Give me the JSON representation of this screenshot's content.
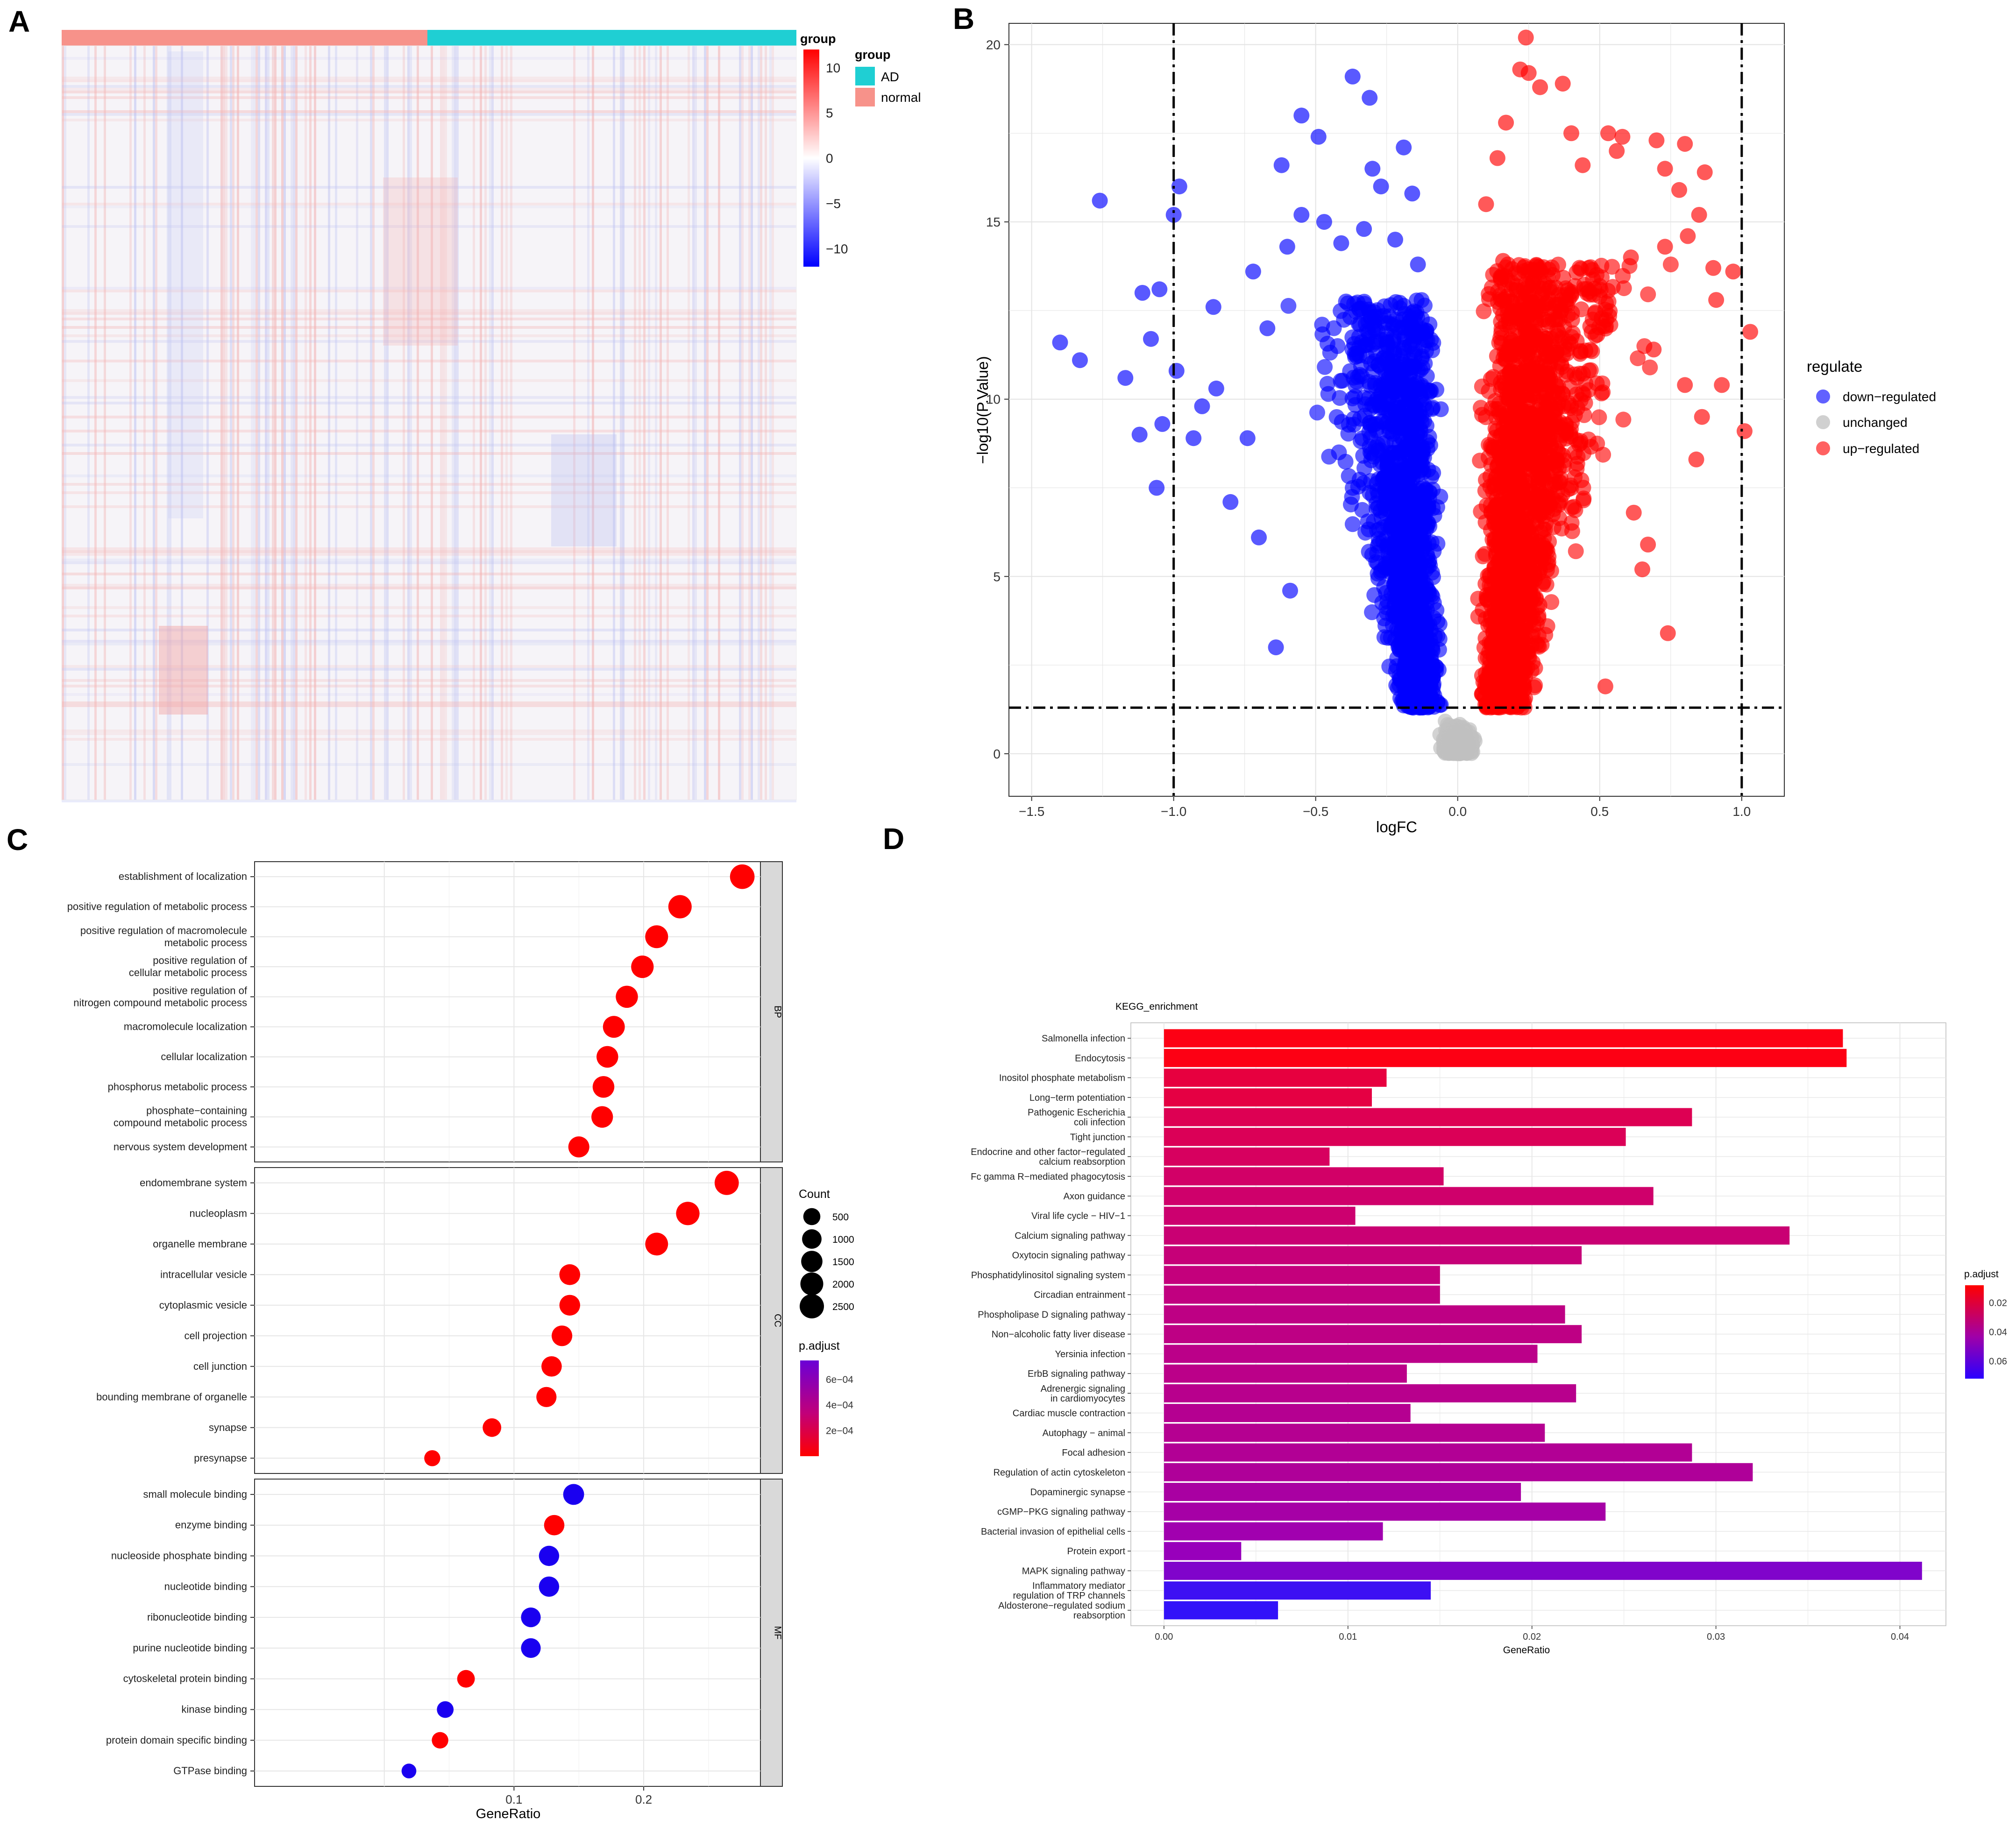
{
  "panel_labels": [
    "A",
    "B",
    "C",
    "D"
  ],
  "colors": {
    "up": "#ff0000",
    "down": "#0000ff",
    "unchanged": "#c0c0c0",
    "ad": "#1fcfd3",
    "normal": "#f7928a"
  },
  "chart_data": [
    {
      "panel": "A",
      "type": "heatmap",
      "annotation_title": "group",
      "legend": {
        "scale_title": "group",
        "scale_ticks": [
          10,
          5,
          0,
          -5,
          -10
        ],
        "groups_title": "group",
        "groups": [
          "AD",
          "normal"
        ]
      }
    },
    {
      "panel": "B",
      "type": "scatter",
      "title": "",
      "xlabel": "logFC",
      "ylabel": "−log10(P.Value)",
      "xlim": [
        -1.58,
        1.15
      ],
      "ylim": [
        -1.2,
        20.6
      ],
      "xticks": [
        -1.5,
        -1.0,
        -0.5,
        0.0,
        0.5,
        1.0
      ],
      "xtick_labels": [
        "−1.5",
        "−1.0",
        "−0.5",
        "0.0",
        "0.5",
        "1.0"
      ],
      "yticks": [
        0,
        5,
        10,
        15,
        20
      ],
      "vlines": [
        -1.0,
        1.0
      ],
      "hline": 1.3,
      "legend_title": "regulate",
      "legend": [
        "down−regulated",
        "unchanged",
        "up−regulated"
      ],
      "series": [
        {
          "name": "down−regulated",
          "points": [
            [
              -1.4,
              11.6
            ],
            [
              -1.33,
              11.1
            ],
            [
              -1.26,
              15.6
            ],
            [
              -1.0,
              15.2
            ],
            [
              -0.98,
              16.0
            ],
            [
              -0.55,
              18.0
            ],
            [
              -0.49,
              17.4
            ],
            [
              -0.37,
              19.1
            ],
            [
              -0.31,
              18.5
            ],
            [
              -0.19,
              17.1
            ],
            [
              -0.3,
              16.5
            ],
            [
              -0.27,
              16.0
            ],
            [
              -0.16,
              15.8
            ],
            [
              -0.62,
              16.6
            ],
            [
              -1.05,
              13.1
            ],
            [
              -1.11,
              13.0
            ],
            [
              -1.08,
              11.7
            ],
            [
              -1.17,
              10.6
            ],
            [
              -1.04,
              9.3
            ],
            [
              -1.12,
              9.0
            ],
            [
              -1.06,
              7.5
            ],
            [
              -0.99,
              10.8
            ],
            [
              -0.9,
              9.8
            ],
            [
              -0.85,
              10.3
            ],
            [
              -0.93,
              8.9
            ],
            [
              -0.74,
              8.9
            ],
            [
              -0.8,
              7.1
            ],
            [
              -0.7,
              6.1
            ],
            [
              -0.64,
              3.0
            ],
            [
              -0.59,
              4.6
            ],
            [
              -0.67,
              12.0
            ],
            [
              -0.72,
              13.6
            ],
            [
              -0.6,
              14.3
            ],
            [
              -0.55,
              15.2
            ],
            [
              -0.47,
              15.0
            ],
            [
              -0.41,
              14.4
            ],
            [
              -0.33,
              14.8
            ],
            [
              -0.22,
              14.5
            ],
            [
              -0.14,
              13.8
            ],
            [
              -0.86,
              12.6
            ]
          ]
        },
        {
          "name": "unchanged",
          "points": []
        },
        {
          "name": "up−regulated",
          "points": [
            [
              0.24,
              20.2
            ],
            [
              0.17,
              17.8
            ],
            [
              0.22,
              19.3
            ],
            [
              0.25,
              19.2
            ],
            [
              0.29,
              18.8
            ],
            [
              0.37,
              18.9
            ],
            [
              0.4,
              17.5
            ],
            [
              0.53,
              17.5
            ],
            [
              0.58,
              17.4
            ],
            [
              0.56,
              17.0
            ],
            [
              0.7,
              17.3
            ],
            [
              0.8,
              17.2
            ],
            [
              0.73,
              16.5
            ],
            [
              0.87,
              16.4
            ],
            [
              0.78,
              15.9
            ],
            [
              0.85,
              15.2
            ],
            [
              0.91,
              12.8
            ],
            [
              1.03,
              11.9
            ],
            [
              1.01,
              9.1
            ],
            [
              0.97,
              13.6
            ],
            [
              0.74,
              3.4
            ],
            [
              0.52,
              1.9
            ],
            [
              0.65,
              5.2
            ],
            [
              0.67,
              5.9
            ],
            [
              0.62,
              6.8
            ],
            [
              0.73,
              14.3
            ],
            [
              0.81,
              14.6
            ],
            [
              0.9,
              13.7
            ],
            [
              0.44,
              16.6
            ],
            [
              0.14,
              16.8
            ],
            [
              0.1,
              15.5
            ],
            [
              0.16,
              13.9
            ],
            [
              0.61,
              14.0
            ],
            [
              0.69,
              11.4
            ],
            [
              0.8,
              10.4
            ],
            [
              0.86,
              9.5
            ],
            [
              0.93,
              10.4
            ],
            [
              0.5,
              12.9
            ],
            [
              0.84,
              8.3
            ]
          ]
        }
      ]
    },
    {
      "panel": "C",
      "type": "scatter",
      "title": "",
      "xlabel": "GeneRatio",
      "ylabel": "",
      "xlim": [
        -0.1,
        0.29
      ],
      "xticks": [
        0.1,
        0.2
      ],
      "facets": [
        {
          "name": "BP",
          "categories": [
            "establishment of localization",
            "positive regulation of metabolic process",
            "positive regulation of macromolecule\nmetabolic process",
            "positive regulation of\ncellular metabolic process",
            "positive regulation of\nnitrogen compound metabolic process",
            "macromolecule localization",
            "cellular localization",
            "phosphorus metabolic process",
            "phosphate−containing\ncompound metabolic process",
            "nervous system development"
          ],
          "gene_ratio": [
            0.276,
            0.228,
            0.21,
            0.199,
            0.187,
            0.177,
            0.172,
            0.169,
            0.168,
            0.15
          ],
          "count": [
            2600,
            2150,
            1980,
            1880,
            1760,
            1660,
            1610,
            1590,
            1580,
            1410
          ],
          "p_adjust": [
            1e-05,
            1e-05,
            1e-05,
            1e-05,
            1e-05,
            1e-05,
            1e-05,
            1e-05,
            1e-05,
            1e-05
          ]
        },
        {
          "name": "CC",
          "categories": [
            "endomembrane system",
            "nucleoplasm",
            "organelle membrane",
            "intracellular vesicle",
            "cytoplasmic vesicle",
            "cell projection",
            "cell junction",
            "bounding membrane of organelle",
            "synapse",
            "presynapse"
          ],
          "gene_ratio": [
            0.264,
            0.234,
            0.21,
            0.143,
            0.143,
            0.137,
            0.129,
            0.125,
            0.083,
            0.037
          ],
          "count": [
            2480,
            2200,
            1970,
            1350,
            1340,
            1290,
            1220,
            1180,
            790,
            350
          ],
          "p_adjust": [
            1e-05,
            1e-05,
            1e-05,
            1e-05,
            1e-05,
            1e-05,
            1e-05,
            1e-05,
            1e-05,
            1e-05
          ]
        },
        {
          "name": "MF",
          "categories": [
            "small molecule binding",
            "enzyme binding",
            "nucleoside phosphate binding",
            "nucleotide binding",
            "ribonucleotide binding",
            "purine nucleotide binding",
            "cytoskeletal protein binding",
            "kinase binding",
            "protein domain specific binding",
            "GTPase binding"
          ],
          "gene_ratio": [
            0.146,
            0.131,
            0.127,
            0.127,
            0.113,
            0.113,
            0.063,
            0.047,
            0.043,
            0.019
          ],
          "count": [
            1370,
            1230,
            1200,
            1200,
            1060,
            1060,
            600,
            450,
            410,
            180
          ],
          "p_adjust": [
            0.00075,
            3e-05,
            0.00072,
            0.00072,
            0.00073,
            0.00073,
            4e-05,
            0.00075,
            3e-05,
            0.00078
          ]
        }
      ],
      "size_legend": {
        "title": "Count",
        "values": [
          500,
          1000,
          1500,
          2000,
          2500
        ]
      },
      "color_legend": {
        "title": "p.adjust",
        "ticks": [
          0.0006,
          0.0004,
          0.0002
        ],
        "tick_labels": [
          "6e−04",
          "4e−04",
          "2e−04"
        ]
      }
    },
    {
      "panel": "D",
      "type": "bar",
      "title": "KEGG_enrichment",
      "xlabel": "GeneRatio",
      "xlim": [
        -0.0018,
        0.0425
      ],
      "xticks": [
        0.0,
        0.01,
        0.02,
        0.03,
        0.04
      ],
      "xtick_labels": [
        "0.00",
        "0.01",
        "0.02",
        "0.03",
        "0.04"
      ],
      "categories": [
        "Salmonella infection",
        "Endocytosis",
        "Inositol phosphate metabolism",
        "Long−term potentiation",
        "Pathogenic Escherichia\ncoli infection",
        "Tight junction",
        "Endocrine and other factor−regulated\ncalcium reabsorption",
        "Fc gamma R−mediated phagocytosis",
        "Axon guidance",
        "Viral life cycle − HIV−1",
        "Calcium signaling pathway",
        "Oxytocin signaling pathway",
        "Phosphatidylinositol signaling system",
        "Circadian entrainment",
        "Phospholipase D signaling pathway",
        "Non−alcoholic fatty liver disease",
        "Yersinia infection",
        "ErbB signaling pathway",
        "Adrenergic signaling\nin cardiomyocytes",
        "Cardiac muscle contraction",
        "Autophagy − animal",
        "Focal adhesion",
        "Regulation of actin cytoskeleton",
        "Dopaminergic synapse",
        "cGMP−PKG signaling pathway",
        "Bacterial invasion of epithelial cells",
        "Protein export",
        "MAPK signaling pathway",
        "Inflammatory mediator\nregulation of TRP channels",
        "Aldosterone−regulated sodium\nreabsorption"
      ],
      "values": [
        0.0369,
        0.0371,
        0.0121,
        0.0113,
        0.0287,
        0.0251,
        0.009,
        0.0152,
        0.0266,
        0.0104,
        0.034,
        0.0227,
        0.015,
        0.015,
        0.0218,
        0.0227,
        0.0203,
        0.0132,
        0.0224,
        0.0134,
        0.0207,
        0.0287,
        0.032,
        0.0194,
        0.024,
        0.0119,
        0.0042,
        0.0412,
        0.0145,
        0.0062
      ],
      "p_adjust": [
        0.009,
        0.009,
        0.02,
        0.021,
        0.025,
        0.026,
        0.028,
        0.03,
        0.031,
        0.032,
        0.033,
        0.034,
        0.035,
        0.036,
        0.037,
        0.037,
        0.038,
        0.038,
        0.039,
        0.04,
        0.04,
        0.041,
        0.042,
        0.044,
        0.045,
        0.047,
        0.05,
        0.055,
        0.068,
        0.07
      ],
      "color_legend": {
        "title": "p.adjust",
        "ticks": [
          0.02,
          0.04,
          0.06
        ],
        "tick_labels": [
          "0.02",
          "0.04",
          "0.06"
        ]
      }
    }
  ]
}
